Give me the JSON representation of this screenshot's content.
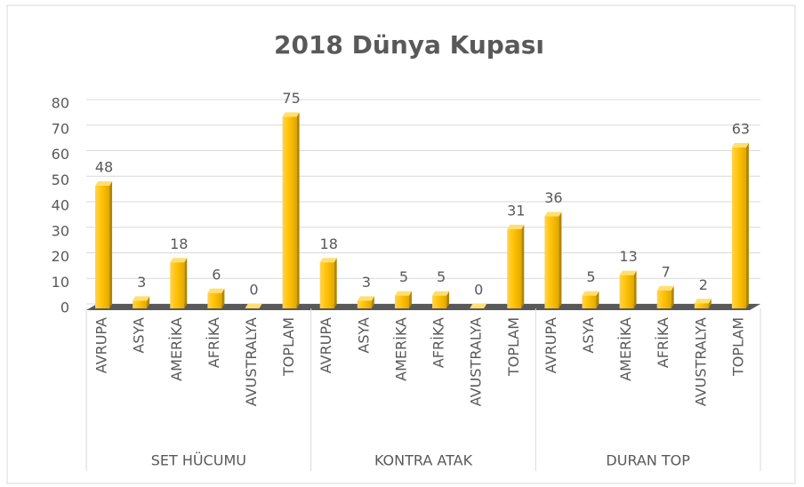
{
  "chart_data": {
    "type": "bar3d",
    "title": "2018 Dünya Kupası",
    "categories": [
      "AVRUPA",
      "ASYA",
      "AMERİKA",
      "AFRİKA",
      "AVUSTRALYA",
      "TOPLAM",
      "AVRUPA",
      "ASYA",
      "AMERİKA",
      "AFRİKA",
      "AVUSTRALYA",
      "TOPLAM",
      "AVRUPA",
      "ASYA",
      "AMERİKA",
      "AFRİKA",
      "AVUSTRALYA",
      "TOPLAM"
    ],
    "groups": [
      "SET HÜCUMU",
      "KONTRA ATAK",
      "DURAN TOP"
    ],
    "values": [
      48,
      3,
      18,
      6,
      0,
      75,
      18,
      3,
      5,
      5,
      0,
      31,
      36,
      5,
      13,
      7,
      2,
      63
    ],
    "color": "#ffc000",
    "ylim": [
      0,
      80
    ],
    "yticks": [
      0,
      10,
      20,
      30,
      40,
      50,
      60,
      70,
      80
    ],
    "grid": true
  }
}
